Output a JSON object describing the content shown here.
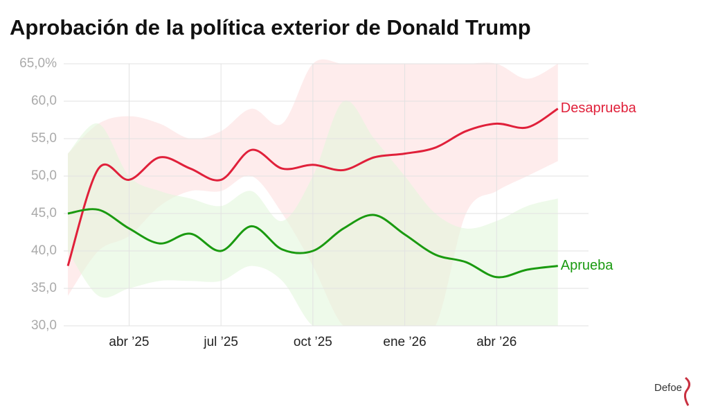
{
  "chart_data": {
    "type": "line",
    "title": "Aprobación de la política exterior de Donald Trump",
    "source": "Defoe",
    "x": [
      "2025-02",
      "2025-03",
      "2025-04",
      "2025-05",
      "2025-06",
      "2025-07",
      "2025-08",
      "2025-09",
      "2025-10",
      "2025-11",
      "2025-12",
      "2026-01",
      "2026-02",
      "2026-03",
      "2026-04",
      "2026-05",
      "2026-06"
    ],
    "xlim": [
      "2025-02",
      "2026-07"
    ],
    "xticks": [
      {
        "value": "2025-04",
        "label": "abr ’25"
      },
      {
        "value": "2025-07",
        "label": "jul ’25"
      },
      {
        "value": "2025-10",
        "label": "oct ’25"
      },
      {
        "value": "2026-01",
        "label": "ene ’26"
      },
      {
        "value": "2026-04",
        "label": "abr ’26"
      }
    ],
    "ylim": [
      30,
      65
    ],
    "yticks": [
      {
        "value": 30,
        "label": "30,0"
      },
      {
        "value": 35,
        "label": "35,0"
      },
      {
        "value": 40,
        "label": "40,0"
      },
      {
        "value": 45,
        "label": "45,0"
      },
      {
        "value": 50,
        "label": "50,0"
      },
      {
        "value": 55,
        "label": "55,0"
      },
      {
        "value": 60,
        "label": "60,0"
      },
      {
        "value": 65,
        "label": "65,0%"
      }
    ],
    "grid": true,
    "series": [
      {
        "name": "Desaprueba",
        "color": "#e0203a",
        "band_color": "#fde0e0",
        "values": [
          38,
          51,
          49.5,
          52.5,
          51,
          49.5,
          53.5,
          51,
          51.5,
          50.8,
          52.5,
          53,
          53.8,
          56,
          57,
          56.5,
          59
        ],
        "upper": [
          53,
          57,
          58,
          57,
          55,
          56,
          59,
          57,
          65,
          65,
          65,
          65,
          65,
          65,
          65,
          63,
          65
        ],
        "lower": [
          34,
          40,
          42,
          46,
          48,
          48,
          50,
          45,
          38,
          30,
          30,
          30,
          30,
          45,
          48,
          50,
          52
        ]
      },
      {
        "name": "Aprueba",
        "color": "#1a9a10",
        "band_color": "#e3f6dc",
        "values": [
          45,
          45.5,
          43,
          41,
          42.3,
          40,
          43.3,
          40.2,
          40,
          43,
          44.8,
          42.2,
          39.5,
          38.5,
          36.5,
          37.5,
          38
        ],
        "upper": [
          53,
          57,
          50,
          48,
          47,
          46,
          48,
          44,
          50,
          60,
          55,
          50,
          45,
          43,
          44,
          46,
          47
        ],
        "lower": [
          40,
          34,
          35,
          36,
          36,
          36,
          38,
          36,
          30,
          30,
          30,
          30,
          30,
          30,
          30,
          30,
          30
        ]
      }
    ]
  }
}
